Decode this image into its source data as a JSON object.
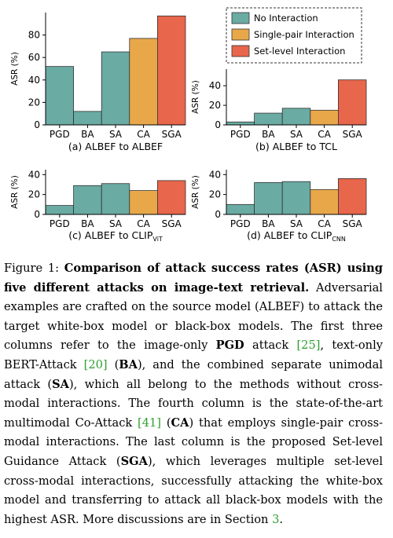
{
  "legend": {
    "items": [
      {
        "label": "No Interaction",
        "color": "#6aaba3"
      },
      {
        "label": "Single-pair Interaction",
        "color": "#e8a84a"
      },
      {
        "label": "Set-level Interaction",
        "color": "#e8664b"
      }
    ]
  },
  "chart_data": [
    {
      "type": "bar",
      "title": "(a) ALBEF to ALBEF",
      "ylabel": "ASR (%)",
      "categories": [
        "PGD",
        "BA",
        "SA",
        "CA",
        "SGA"
      ],
      "values": [
        52,
        12,
        65,
        77,
        97
      ],
      "ylim": [
        0,
        100
      ],
      "yticks": [
        0,
        20,
        40,
        60,
        80
      ]
    },
    {
      "type": "bar",
      "title": "(b) ALBEF to TCL",
      "ylabel": "ASR (%)",
      "categories": [
        "PGD",
        "BA",
        "SA",
        "CA",
        "SGA"
      ],
      "values": [
        3,
        12,
        17,
        15,
        46
      ],
      "ylim": [
        0,
        57
      ],
      "yticks": [
        0,
        20,
        40
      ]
    },
    {
      "type": "bar",
      "title": "(c) ALBEF to CLIP",
      "title_sub": "ViT",
      "ylabel": "ASR (%)",
      "categories": [
        "PGD",
        "BA",
        "SA",
        "CA",
        "SGA"
      ],
      "values": [
        9,
        29,
        31,
        24,
        34
      ],
      "ylim": [
        0,
        45
      ],
      "yticks": [
        0,
        20,
        40
      ]
    },
    {
      "type": "bar",
      "title": "(d) ALBEF to CLIP",
      "title_sub": "CNN",
      "ylabel": "ASR (%)",
      "categories": [
        "PGD",
        "BA",
        "SA",
        "CA",
        "SGA"
      ],
      "values": [
        10,
        32,
        33,
        25,
        36
      ],
      "ylim": [
        0,
        45
      ],
      "yticks": [
        0,
        20,
        40
      ]
    }
  ],
  "colors": {
    "none": "#6aaba3",
    "single": "#e8a84a",
    "set": "#e8664b",
    "citation": "#2e9f2e"
  },
  "caption": {
    "label": "Figure 1: ",
    "bold_title": "Comparison of attack success rates (ASR) using five different attacks on image-text retrieval.",
    "s1": " Adversarial examples are crafted on the source model (ALBEF) to attack the target white-box model or black-box models. The first three columns refer to the image-only ",
    "pgd": "PGD",
    "s2": " attack ",
    "ref_pgd": "[25]",
    "s3": ", text-only BERT-Attack ",
    "ref_ba": "[20]",
    "s4": " (",
    "ba": "BA",
    "s5": "), and the combined separate unimodal attack (",
    "sa": "SA",
    "s6": "), which all belong to the methods without cross-modal interactions. The fourth column is the state-of-the-art multimodal Co-Attack ",
    "ref_ca": "[41]",
    "s7": " (",
    "ca": "CA",
    "s8": ") that employs single-pair cross-modal interactions. The last column is the proposed Set-level Guidance Attack (",
    "sga": "SGA",
    "s9": "), which leverages multiple set-level cross-modal interactions, successfully attacking the white-box model and transferring to attack all black-box models with the highest ASR. More discussions are in Section ",
    "ref_sec": "3",
    "s10": "."
  }
}
